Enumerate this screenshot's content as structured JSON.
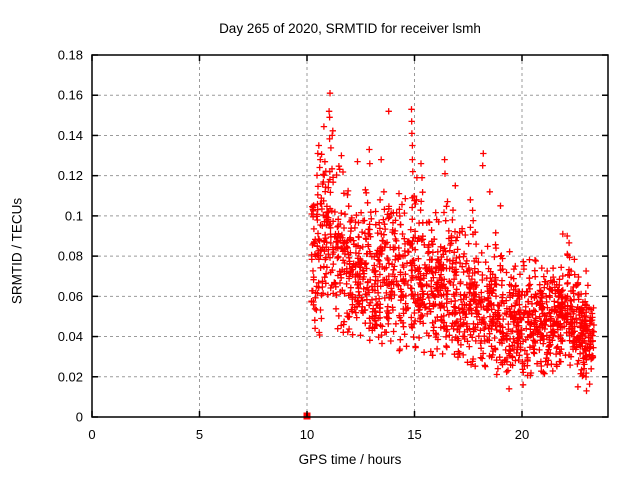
{
  "window": {
    "background": "#ffffff"
  },
  "colors": {
    "marker": "#ff0000",
    "grid": "#9b9b9b",
    "axis": "#000000",
    "text": "#000000",
    "background": "#ffffff"
  },
  "chart_data": {
    "type": "scatter",
    "title": "Day 265 of 2020, SRMTID for receiver lsmh",
    "xlabel": "GPS time / hours",
    "ylabel": "SRMTID / TECUs",
    "xlim": [
      0,
      24
    ],
    "ylim": [
      0,
      0.18
    ],
    "grid": true,
    "legend": "none",
    "marker": "plus",
    "marker_color": "#ff0000",
    "xtick_values": [
      0,
      5,
      10,
      15,
      20
    ],
    "xtick_labels": [
      "0",
      "5",
      "10",
      "15",
      "20"
    ],
    "ytick_values": [
      0,
      0.02,
      0.04,
      0.06,
      0.08,
      0.1,
      0.12,
      0.14,
      0.16,
      0.18
    ],
    "ytick_labels": [
      "0",
      "0.02",
      "0.04",
      "0.06",
      "0.08",
      "0.1",
      "0.12",
      "0.14",
      "0.16",
      "0.18"
    ],
    "x_data_range": [
      10.0,
      23.35
    ],
    "description": "Dense cloud of red plus markers starting abruptly at 10 h, upper envelope decaying from ~0.16 at 11 h to ~0.08 by 23 h; core band 0.03-0.10 TECUs; single filled red square at (10, 0).",
    "density_bins": [
      [
        10.2,
        10.45,
        32,
        0.082,
        0.026,
        0.038,
        0.135
      ],
      [
        10.45,
        10.7,
        38,
        0.086,
        0.026,
        0.04,
        0.136
      ],
      [
        10.7,
        11.2,
        68,
        0.09,
        0.026,
        0.045,
        0.148
      ],
      [
        11.2,
        11.7,
        62,
        0.08,
        0.021,
        0.04,
        0.125
      ],
      [
        11.7,
        12.2,
        66,
        0.076,
        0.02,
        0.038,
        0.12
      ],
      [
        12.2,
        12.7,
        66,
        0.073,
        0.019,
        0.035,
        0.115
      ],
      [
        12.7,
        13.2,
        66,
        0.072,
        0.02,
        0.033,
        0.12
      ],
      [
        13.2,
        13.7,
        62,
        0.07,
        0.019,
        0.032,
        0.115
      ],
      [
        13.7,
        14.2,
        62,
        0.072,
        0.02,
        0.035,
        0.125
      ],
      [
        14.2,
        14.7,
        62,
        0.07,
        0.02,
        0.033,
        0.118
      ],
      [
        14.7,
        15.2,
        66,
        0.071,
        0.022,
        0.034,
        0.128
      ],
      [
        15.2,
        15.7,
        66,
        0.068,
        0.02,
        0.032,
        0.12
      ],
      [
        15.7,
        16.2,
        66,
        0.065,
        0.019,
        0.03,
        0.112
      ],
      [
        16.2,
        16.7,
        70,
        0.064,
        0.02,
        0.028,
        0.118
      ],
      [
        16.7,
        17.2,
        66,
        0.06,
        0.018,
        0.027,
        0.105
      ],
      [
        17.2,
        17.7,
        66,
        0.058,
        0.017,
        0.026,
        0.1
      ],
      [
        17.7,
        18.2,
        66,
        0.056,
        0.017,
        0.025,
        0.108
      ],
      [
        18.2,
        18.7,
        66,
        0.054,
        0.016,
        0.024,
        0.1
      ],
      [
        18.7,
        19.2,
        66,
        0.05,
        0.016,
        0.02,
        0.095
      ],
      [
        19.2,
        19.7,
        66,
        0.048,
        0.015,
        0.017,
        0.09
      ],
      [
        19.7,
        20.2,
        70,
        0.047,
        0.014,
        0.016,
        0.086
      ],
      [
        20.2,
        20.7,
        70,
        0.047,
        0.013,
        0.018,
        0.082
      ],
      [
        20.7,
        21.2,
        70,
        0.048,
        0.013,
        0.02,
        0.08
      ],
      [
        21.2,
        21.7,
        70,
        0.05,
        0.013,
        0.022,
        0.082
      ],
      [
        21.7,
        22.2,
        74,
        0.052,
        0.014,
        0.02,
        0.09
      ],
      [
        22.2,
        22.7,
        74,
        0.048,
        0.014,
        0.018,
        0.088
      ],
      [
        22.7,
        23.1,
        74,
        0.042,
        0.013,
        0.015,
        0.08
      ],
      [
        23.1,
        23.35,
        36,
        0.038,
        0.01,
        0.015,
        0.06
      ]
    ],
    "outlier_points": [
      [
        11.07,
        0.161
      ],
      [
        11.03,
        0.152
      ],
      [
        11.05,
        0.149
      ],
      [
        10.55,
        0.135
      ],
      [
        10.5,
        0.131
      ],
      [
        10.62,
        0.128
      ],
      [
        11.6,
        0.13
      ],
      [
        12.35,
        0.127
      ],
      [
        12.9,
        0.133
      ],
      [
        12.92,
        0.126
      ],
      [
        13.45,
        0.128
      ],
      [
        13.8,
        0.152
      ],
      [
        14.86,
        0.153
      ],
      [
        14.87,
        0.147
      ],
      [
        14.88,
        0.141
      ],
      [
        14.9,
        0.135
      ],
      [
        14.9,
        0.128
      ],
      [
        14.92,
        0.122
      ],
      [
        15.3,
        0.126
      ],
      [
        15.35,
        0.119
      ],
      [
        16.4,
        0.128
      ],
      [
        16.42,
        0.121
      ],
      [
        16.9,
        0.115
      ],
      [
        17.6,
        0.108
      ],
      [
        18.2,
        0.131
      ],
      [
        18.17,
        0.125
      ],
      [
        18.5,
        0.112
      ],
      [
        19.0,
        0.105
      ],
      [
        19.4,
        0.014
      ],
      [
        20.05,
        0.016
      ],
      [
        21.9,
        0.091
      ],
      [
        22.1,
        0.09
      ],
      [
        22.6,
        0.015
      ],
      [
        23.0,
        0.013
      ]
    ],
    "special_points": [
      {
        "x": 10.0,
        "y": 0.0,
        "marker": "filled-square"
      }
    ],
    "seed": 20200265
  }
}
